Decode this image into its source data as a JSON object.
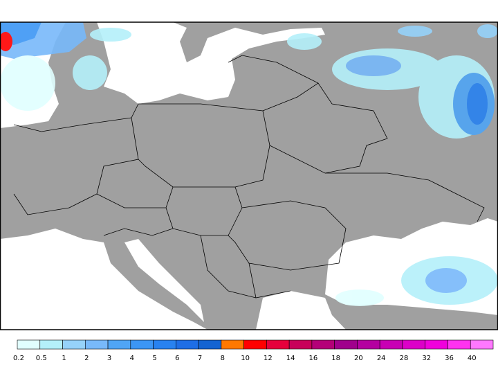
{
  "legend": {
    "labels": [
      "0.2",
      "0.5",
      "1",
      "2",
      "3",
      "4",
      "5",
      "6",
      "7",
      "8",
      "10",
      "12",
      "14",
      "16",
      "18",
      "20",
      "24",
      "28",
      "32",
      "36",
      "40"
    ],
    "colors": [
      "#e1ffff",
      "#b4f0fa",
      "#96d2fa",
      "#78b9fa",
      "#50a5f5",
      "#3c96f5",
      "#2882f0",
      "#1e6ee6",
      "#1464d2",
      "#ff7800",
      "#ff0000",
      "#e6003c",
      "#c8005a",
      "#b40078",
      "#a0008c",
      "#b400a0",
      "#c800b4",
      "#dc00c8",
      "#f000dc",
      "#ff32f0",
      "#ff78ff"
    ]
  }
}
